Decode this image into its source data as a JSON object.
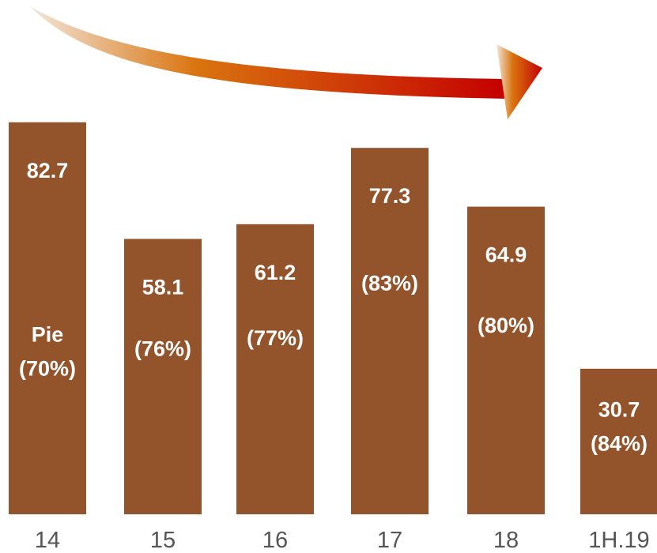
{
  "chart_data": {
    "type": "bar",
    "categories": [
      "14",
      "15",
      "16",
      "17",
      "18",
      "1H.19"
    ],
    "values": [
      82.7,
      58.1,
      61.2,
      77.3,
      64.9,
      30.7
    ],
    "value_labels": [
      "82.7",
      "58.1",
      "61.2",
      "77.3",
      "64.9",
      "30.7"
    ],
    "annotation_lines": [
      [
        "Pie",
        "(70%)"
      ],
      [
        "(76%)"
      ],
      [
        "(77%)"
      ],
      [
        "(83%)"
      ],
      [
        "(80%)"
      ],
      [
        "(84%)"
      ]
    ],
    "ylim": [
      0,
      100
    ],
    "grid": false,
    "legend": "none",
    "trend_arrow": "decreasing",
    "colors": {
      "bar": "#93532b",
      "arrow_start": "#f2e6da",
      "arrow_mid": "#d9740f",
      "arrow_end": "#c40000",
      "tick": "#555555"
    }
  }
}
